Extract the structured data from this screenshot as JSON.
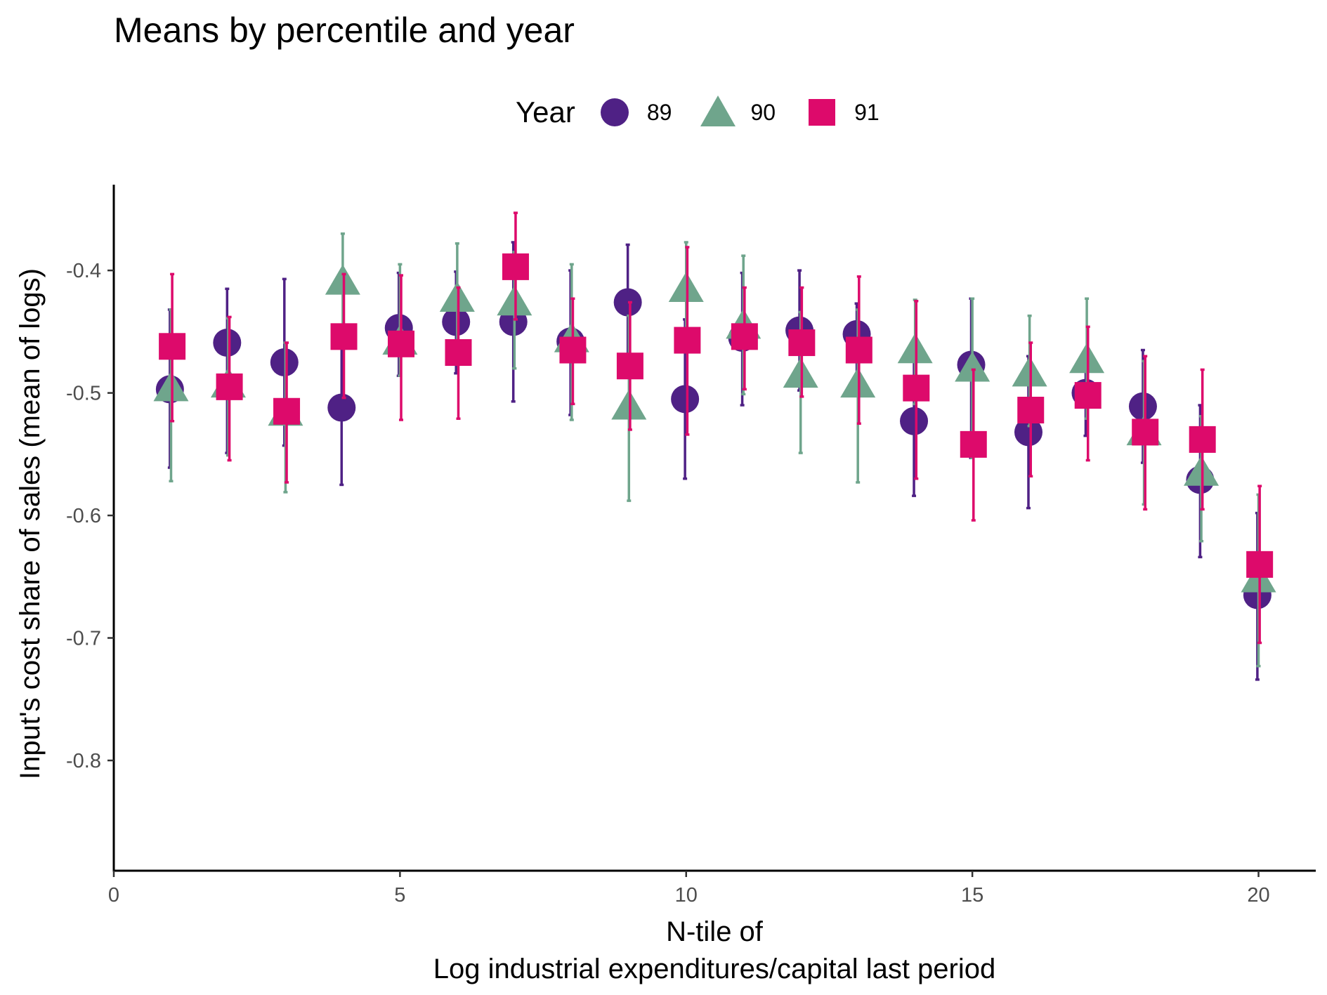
{
  "chart_data": {
    "type": "scatter",
    "title": "Means by percentile and year",
    "xlabel": [
      "N-tile of",
      "Log industrial expenditures/capital last period"
    ],
    "ylabel": "Input's cost share of sales (mean of logs)",
    "xlim": [
      0,
      21
    ],
    "ylim": [
      -0.89,
      -0.33
    ],
    "xticks": [
      0,
      5,
      10,
      15,
      20
    ],
    "xtick_labels": [
      "0",
      "5",
      "10",
      "15",
      "20"
    ],
    "yticks": [
      -0.4,
      -0.5,
      -0.6,
      -0.7,
      -0.8
    ],
    "ytick_labels": [
      "-0.4",
      "-0.5",
      "-0.6",
      "-0.7",
      "-0.8"
    ],
    "legend": {
      "title": "Year",
      "position": "top"
    },
    "grid": false,
    "error_bars": true,
    "series": [
      {
        "name": "89",
        "marker": "circle",
        "color": "#4f2185",
        "points": [
          {
            "x": 1,
            "y": -0.497,
            "lo": -0.561,
            "hi": -0.432
          },
          {
            "x": 2,
            "y": -0.459,
            "lo": -0.549,
            "hi": -0.415
          },
          {
            "x": 3,
            "y": -0.475,
            "lo": -0.543,
            "hi": -0.407
          },
          {
            "x": 4,
            "y": -0.512,
            "lo": -0.575,
            "hi": -0.459
          },
          {
            "x": 5,
            "y": -0.447,
            "lo": -0.486,
            "hi": -0.402
          },
          {
            "x": 6,
            "y": -0.442,
            "lo": -0.484,
            "hi": -0.401
          },
          {
            "x": 7,
            "y": -0.442,
            "lo": -0.507,
            "hi": -0.377
          },
          {
            "x": 8,
            "y": -0.458,
            "lo": -0.518,
            "hi": -0.4
          },
          {
            "x": 9,
            "y": -0.426,
            "lo": -0.475,
            "hi": -0.379
          },
          {
            "x": 10,
            "y": -0.505,
            "lo": -0.57,
            "hi": -0.44
          },
          {
            "x": 11,
            "y": -0.455,
            "lo": -0.51,
            "hi": -0.402
          },
          {
            "x": 12,
            "y": -0.449,
            "lo": -0.498,
            "hi": -0.4
          },
          {
            "x": 13,
            "y": -0.452,
            "lo": -0.498,
            "hi": -0.427
          },
          {
            "x": 14,
            "y": -0.523,
            "lo": -0.584,
            "hi": -0.462
          },
          {
            "x": 15,
            "y": -0.477,
            "lo": -0.553,
            "hi": -0.423
          },
          {
            "x": 16,
            "y": -0.532,
            "lo": -0.594,
            "hi": -0.47
          },
          {
            "x": 17,
            "y": -0.5,
            "lo": -0.535,
            "hi": -0.465
          },
          {
            "x": 18,
            "y": -0.511,
            "lo": -0.557,
            "hi": -0.465
          },
          {
            "x": 19,
            "y": -0.571,
            "lo": -0.634,
            "hi": -0.51
          },
          {
            "x": 20,
            "y": -0.665,
            "lo": -0.734,
            "hi": -0.598
          }
        ]
      },
      {
        "name": "90",
        "marker": "triangle",
        "color": "#6fa58c",
        "points": [
          {
            "x": 1,
            "y": -0.497,
            "lo": -0.572,
            "hi": -0.432
          },
          {
            "x": 2,
            "y": -0.494,
            "lo": -0.551,
            "hi": -0.439
          },
          {
            "x": 3,
            "y": -0.517,
            "lo": -0.581,
            "hi": -0.459
          },
          {
            "x": 4,
            "y": -0.41,
            "lo": -0.459,
            "hi": -0.37
          },
          {
            "x": 5,
            "y": -0.459,
            "lo": -0.486,
            "hi": -0.395
          },
          {
            "x": 6,
            "y": -0.424,
            "lo": -0.474,
            "hi": -0.378
          },
          {
            "x": 7,
            "y": -0.427,
            "lo": -0.48,
            "hi": -0.385
          },
          {
            "x": 8,
            "y": -0.457,
            "lo": -0.522,
            "hi": -0.395
          },
          {
            "x": 9,
            "y": -0.512,
            "lo": -0.588,
            "hi": -0.437
          },
          {
            "x": 10,
            "y": -0.416,
            "lo": -0.456,
            "hi": -0.377
          },
          {
            "x": 11,
            "y": -0.446,
            "lo": -0.501,
            "hi": -0.388
          },
          {
            "x": 12,
            "y": -0.486,
            "lo": -0.549,
            "hi": -0.434
          },
          {
            "x": 13,
            "y": -0.494,
            "lo": -0.573,
            "hi": -0.432
          },
          {
            "x": 14,
            "y": -0.466,
            "lo": -0.509,
            "hi": -0.424
          },
          {
            "x": 15,
            "y": -0.481,
            "lo": -0.553,
            "hi": -0.423
          },
          {
            "x": 16,
            "y": -0.485,
            "lo": -0.527,
            "hi": -0.437
          },
          {
            "x": 17,
            "y": -0.474,
            "lo": -0.521,
            "hi": -0.423
          },
          {
            "x": 18,
            "y": -0.533,
            "lo": -0.591,
            "hi": -0.474
          },
          {
            "x": 19,
            "y": -0.566,
            "lo": -0.621,
            "hi": -0.519
          },
          {
            "x": 20,
            "y": -0.653,
            "lo": -0.723,
            "hi": -0.583
          }
        ]
      },
      {
        "name": "91",
        "marker": "square",
        "color": "#dd0a6b",
        "points": [
          {
            "x": 1,
            "y": -0.462,
            "lo": -0.523,
            "hi": -0.403
          },
          {
            "x": 2,
            "y": -0.495,
            "lo": -0.555,
            "hi": -0.438
          },
          {
            "x": 3,
            "y": -0.515,
            "lo": -0.573,
            "hi": -0.459
          },
          {
            "x": 4,
            "y": -0.454,
            "lo": -0.504,
            "hi": -0.403
          },
          {
            "x": 5,
            "y": -0.46,
            "lo": -0.522,
            "hi": -0.404
          },
          {
            "x": 6,
            "y": -0.467,
            "lo": -0.521,
            "hi": -0.414
          },
          {
            "x": 7,
            "y": -0.397,
            "lo": -0.44,
            "hi": -0.353
          },
          {
            "x": 8,
            "y": -0.465,
            "lo": -0.509,
            "hi": -0.423
          },
          {
            "x": 9,
            "y": -0.478,
            "lo": -0.53,
            "hi": -0.426
          },
          {
            "x": 10,
            "y": -0.457,
            "lo": -0.534,
            "hi": -0.381
          },
          {
            "x": 11,
            "y": -0.454,
            "lo": -0.497,
            "hi": -0.414
          },
          {
            "x": 12,
            "y": -0.459,
            "lo": -0.503,
            "hi": -0.414
          },
          {
            "x": 13,
            "y": -0.465,
            "lo": -0.525,
            "hi": -0.405
          },
          {
            "x": 14,
            "y": -0.496,
            "lo": -0.57,
            "hi": -0.425
          },
          {
            "x": 15,
            "y": -0.542,
            "lo": -0.604,
            "hi": -0.481
          },
          {
            "x": 16,
            "y": -0.514,
            "lo": -0.568,
            "hi": -0.459
          },
          {
            "x": 17,
            "y": -0.502,
            "lo": -0.555,
            "hi": -0.446
          },
          {
            "x": 18,
            "y": -0.532,
            "lo": -0.595,
            "hi": -0.47
          },
          {
            "x": 19,
            "y": -0.538,
            "lo": -0.595,
            "hi": -0.481
          },
          {
            "x": 20,
            "y": -0.64,
            "lo": -0.704,
            "hi": -0.576
          }
        ]
      }
    ]
  }
}
